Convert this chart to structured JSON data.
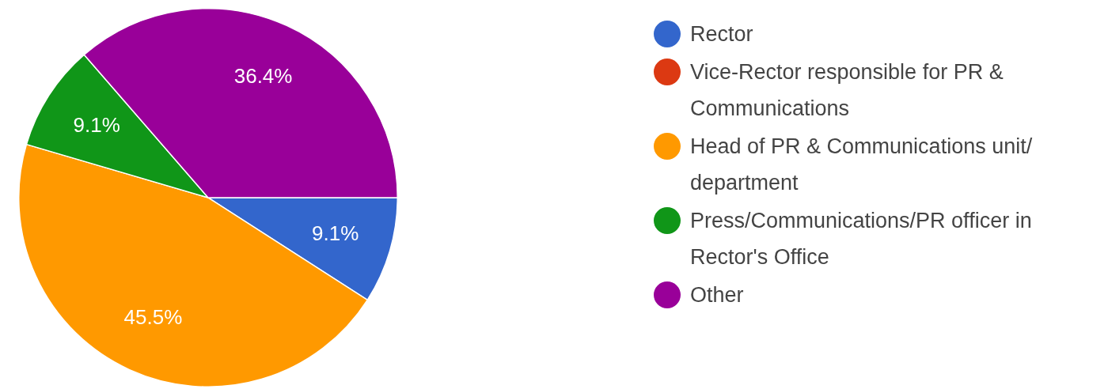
{
  "chart_data": {
    "type": "pie",
    "categories": [
      "Rector",
      "Vice-Rector responsible for PR & Communications",
      "Head of PR & Communications unit/ department",
      "Press/Communications/PR officer in Rector's Office",
      "Other"
    ],
    "values": [
      9.1,
      0,
      45.5,
      9.1,
      36.4
    ],
    "colors": [
      "#3366cc",
      "#dc3912",
      "#ff9900",
      "#109618",
      "#990099"
    ],
    "value_labels": [
      "9.1%",
      null,
      "45.5%",
      "9.1%",
      "36.4%"
    ],
    "legend": "right"
  }
}
